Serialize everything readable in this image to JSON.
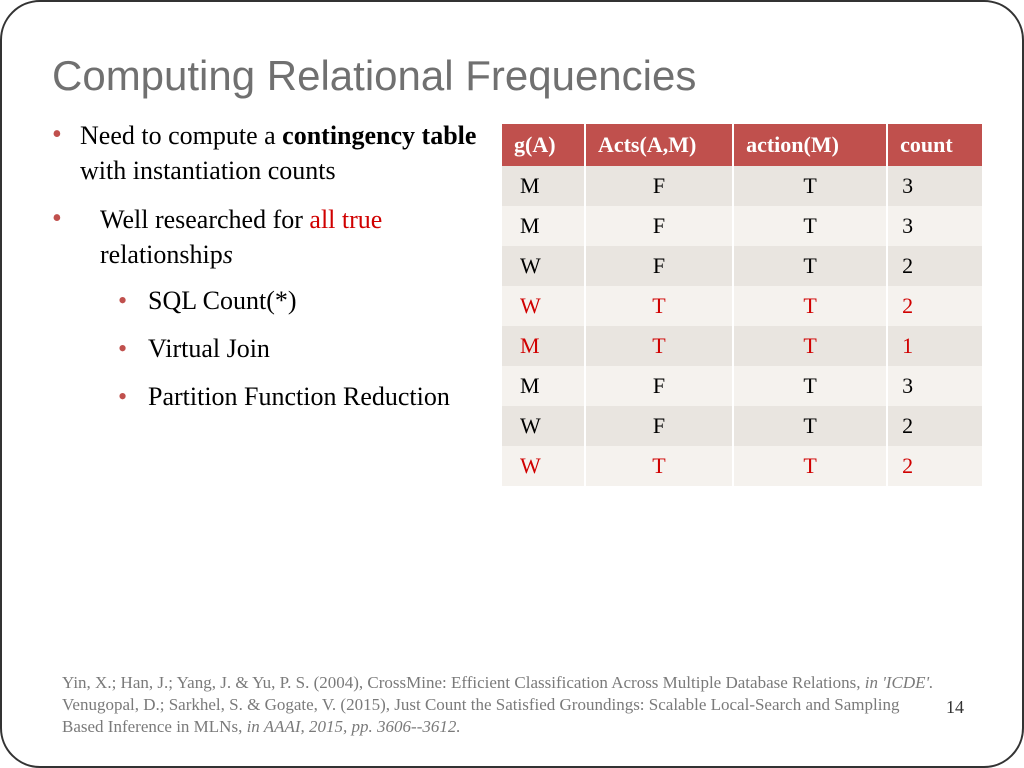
{
  "title": "Computing Relational Frequencies",
  "bullets": {
    "b1_pre": "Need to compute a ",
    "b1_bold": "contingency table",
    "b1_post": " with instantiation counts",
    "b2_pre": "Well researched for ",
    "b2_red": "all true",
    "b2_post": " relationship",
    "b2_ital": "s",
    "b2a": "SQL Count(*)",
    "b2b": "Virtual Join",
    "b2c": "Partition Function Reduction"
  },
  "table": {
    "columns": [
      "g(A)",
      "Acts(A,M)",
      "action(M)",
      "count"
    ],
    "rows": [
      {
        "cells": [
          "M",
          "F",
          "T",
          "3"
        ],
        "highlight": false
      },
      {
        "cells": [
          "M",
          "F",
          "T",
          "3"
        ],
        "highlight": false
      },
      {
        "cells": [
          "W",
          "F",
          "T",
          "2"
        ],
        "highlight": false
      },
      {
        "cells": [
          "W",
          "T",
          "T",
          "2"
        ],
        "highlight": true
      },
      {
        "cells": [
          "M",
          "T",
          "T",
          "1"
        ],
        "highlight": true
      },
      {
        "cells": [
          "M",
          "F",
          "T",
          "3"
        ],
        "highlight": false
      },
      {
        "cells": [
          "W",
          "F",
          "T",
          "2"
        ],
        "highlight": false
      },
      {
        "cells": [
          "W",
          "T",
          "T",
          "2"
        ],
        "highlight": true
      }
    ],
    "header_bg": "#c0504d",
    "header_fg": "#ffffff",
    "row_odd_bg": "#e9e5e0",
    "row_even_bg": "#f5f2ee",
    "highlight_fg": "#d00000",
    "col_align": [
      "left",
      "center",
      "center",
      "left"
    ]
  },
  "refs": {
    "r1_plain": "Yin, X.; Han, J.; Yang, J. & Yu, P. S. (2004), CrossMine: Efficient Classification Across Multiple Database Relations, ",
    "r1_ital": "in 'ICDE'.",
    "r2_plain": "Venugopal, D.; Sarkhel, S. & Gogate, V. (2015), Just Count the Satisfied Groundings: Scalable Local-Search and Sampling Based Inference in MLNs, ",
    "r2_ital": "in AAAI, 2015, pp. 3606--3612."
  },
  "page_number": "14",
  "colors": {
    "title": "#707070",
    "bullet_marker": "#c0504d",
    "emphasis_red": "#d00000",
    "ref_text": "#7a7a7a"
  },
  "fonts": {
    "title_family": "Segoe UI, Arial, sans-serif",
    "body_family": "Garamond, Times New Roman, serif",
    "title_size_pt": 32,
    "body_size_pt": 20,
    "ref_size_pt": 13
  }
}
